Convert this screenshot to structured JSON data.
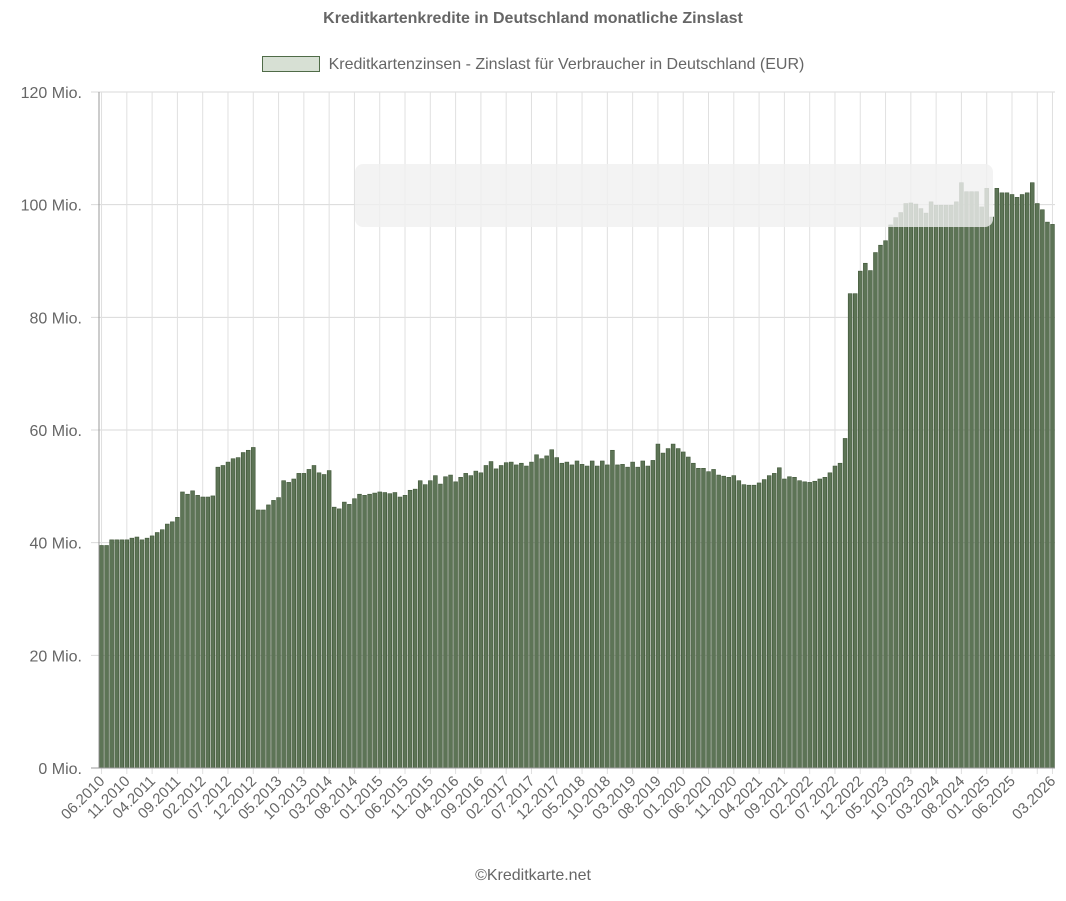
{
  "chart_data": {
    "type": "bar",
    "title": "Kreditkartenkredite in Deutschland monatliche Zinslast",
    "series": [
      {
        "name": "Kreditkartenzinsen - Zinslast für Verbraucher in Deutschland (EUR)",
        "values": [
          39.5,
          39.5,
          40.5,
          40.5,
          40.5,
          40.5,
          40.8,
          41.0,
          40.5,
          40.8,
          41.2,
          41.8,
          42.3,
          43.3,
          43.7,
          44.5,
          49.0,
          48.6,
          49.2,
          48.4,
          48.1,
          48.1,
          48.3,
          53.4,
          53.7,
          54.3,
          54.9,
          55.1,
          56.0,
          56.4,
          56.9,
          45.8,
          45.8,
          46.7,
          47.5,
          48.0,
          51.0,
          50.7,
          51.3,
          52.3,
          52.3,
          53.0,
          53.7,
          52.4,
          52.1,
          52.8,
          46.3,
          46.0,
          47.2,
          46.8,
          47.8,
          48.6,
          48.4,
          48.6,
          48.8,
          49.0,
          48.9,
          48.7,
          48.9,
          48.1,
          48.4,
          49.3,
          49.5,
          51.0,
          50.3,
          51.0,
          51.9,
          50.4,
          51.7,
          52.0,
          50.8,
          51.6,
          52.3,
          51.9,
          52.7,
          52.4,
          53.7,
          54.4,
          53.1,
          53.7,
          54.2,
          54.3,
          53.8,
          54.1,
          53.6,
          54.3,
          55.6,
          54.9,
          55.4,
          56.5,
          55.1,
          54.1,
          54.3,
          53.8,
          54.5,
          53.9,
          53.6,
          54.5,
          53.6,
          54.5,
          53.8,
          56.4,
          53.8,
          53.9,
          53.4,
          54.3,
          53.4,
          54.5,
          53.6,
          54.6,
          57.5,
          55.9,
          56.7,
          57.5,
          56.7,
          56.1,
          55.2,
          54.1,
          53.2,
          53.2,
          52.6,
          53.0,
          52.0,
          51.8,
          51.6,
          51.9,
          51.0,
          50.3,
          50.2,
          50.2,
          50.6,
          51.2,
          51.9,
          52.3,
          53.3,
          51.3,
          51.7,
          51.6,
          51.0,
          50.8,
          50.7,
          50.9,
          51.3,
          51.6,
          52.4,
          53.6,
          54.1,
          58.5,
          84.2,
          84.2,
          88.2,
          89.6,
          88.3,
          91.5,
          92.8,
          93.6,
          96.4,
          97.7,
          98.6,
          100.2,
          100.3,
          100.1,
          99.3,
          98.5,
          100.5,
          99.9,
          99.9,
          99.9,
          99.9,
          100.5,
          103.9,
          102.3,
          102.3,
          102.3,
          99.6,
          102.9,
          97.8,
          102.9,
          102.1,
          102.1,
          101.8,
          101.3,
          101.8,
          102.1,
          103.9,
          100.2,
          99.1,
          96.9,
          96.5
        ]
      }
    ],
    "x_tick_labels": [
      "06.2010",
      "11.2010",
      "04.2011",
      "09.2011",
      "02.2012",
      "07.2012",
      "12.2012",
      "05.2013",
      "10.2013",
      "03.2014",
      "08.2014",
      "01.2015",
      "06.2015",
      "11.2015",
      "04.2016",
      "09.2016",
      "02.2017",
      "07.2017",
      "12.2017",
      "05.2018",
      "10.2018",
      "03.2019",
      "08.2019",
      "01.2020",
      "06.2020",
      "11.2020",
      "04.2021",
      "09.2021",
      "02.2022",
      "07.2022",
      "12.2022",
      "05.2023",
      "10.2023",
      "03.2024",
      "08.2024",
      "01.2025",
      "06.2025",
      "03.2026"
    ],
    "y_tick_labels": [
      "0 Mio.",
      "20 Mio.",
      "40 Mio.",
      "60 Mio.",
      "80 Mio.",
      "100 Mio.",
      "120 Mio."
    ],
    "ylim": [
      0,
      120
    ],
    "y_unit": "Mio. EUR",
    "grid": true,
    "legend_position": "top",
    "bar_fill": "#5d7456",
    "bar_stroke": "#3f5637",
    "legend_fill": "#d7e0d4"
  },
  "footer": "©Kreditkarte.net"
}
